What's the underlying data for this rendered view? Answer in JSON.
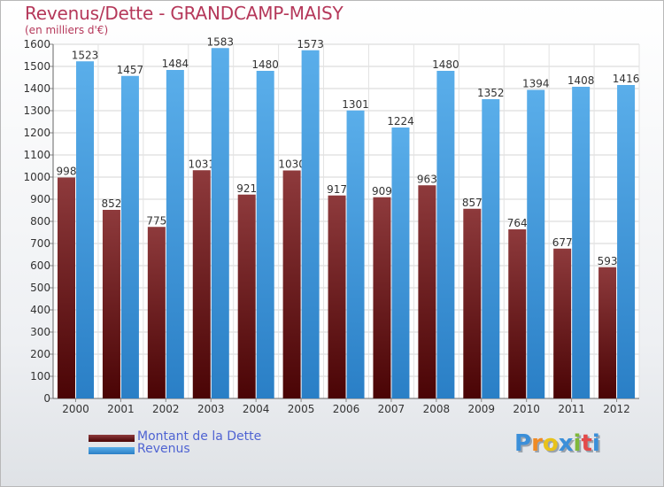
{
  "title": "Revenus/Dette - GRANDCAMP-MAISY",
  "subtitle": "(en milliers d'€)",
  "colors": {
    "dette": "#6a1518",
    "revenus": "#3f97dc",
    "title": "#b5385a",
    "legend_text": "#4f63d2"
  },
  "legend": {
    "dette_label": "Montant de la Dette",
    "revenus_label": "Revenus"
  },
  "logo": {
    "text": "Proxiti"
  },
  "chart_data": {
    "type": "bar",
    "title": "Revenus/Dette - GRANDCAMP-MAISY",
    "subtitle": "(en milliers d'€)",
    "categories": [
      "2000",
      "2001",
      "2002",
      "2003",
      "2004",
      "2005",
      "2006",
      "2007",
      "2008",
      "2009",
      "2010",
      "2011",
      "2012"
    ],
    "series": [
      {
        "name": "Montant de la Dette",
        "values": [
          998,
          852,
          775,
          1031,
          921,
          1030,
          917,
          909,
          963,
          857,
          764,
          677,
          593
        ],
        "labels": [
          "998",
          "852",
          "775",
          "1031",
          "921",
          "1030",
          "917",
          "909",
          "963",
          "857",
          "764",
          "677",
          "593"
        ]
      },
      {
        "name": "Revenus",
        "values": [
          1523,
          1457,
          1484,
          1583,
          1480,
          1573,
          1301,
          1224,
          1480,
          1352,
          1394,
          1408,
          1416
        ],
        "labels": [
          "1523",
          "1457",
          "1484",
          "1583",
          "1480",
          "1573",
          "1301",
          "1224",
          "1480",
          "1352",
          "1394",
          "1408",
          "1416"
        ]
      }
    ],
    "ylim": [
      0,
      1600
    ],
    "yticks": [
      "0",
      "100",
      "200",
      "300",
      "400",
      "500",
      "600",
      "700",
      "800",
      "900",
      "1000",
      "1100",
      "1200",
      "1300",
      "1400",
      "1500",
      "1600"
    ],
    "grid": true,
    "legend_position": "bottom-left"
  }
}
